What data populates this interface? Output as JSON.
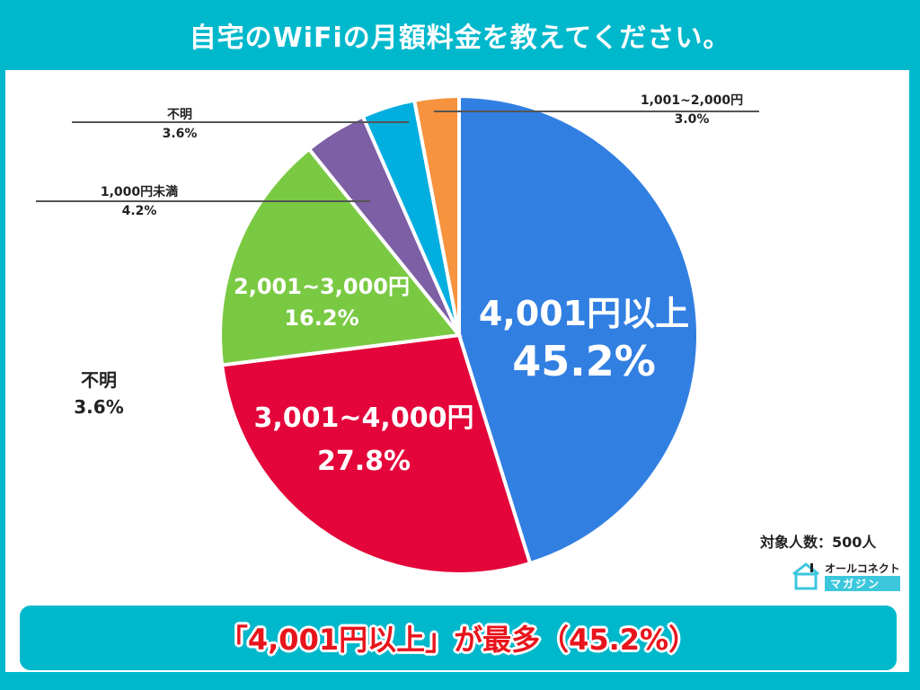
{
  "title": "自宅のWiFiの月額料金を教えてください。",
  "sample_size": "対象人数：500人",
  "logo": {
    "top": "オールコネクト",
    "bottom": "マガジン"
  },
  "footer": "「4,001円以上」が最多（45.2%）",
  "labels": {
    "s1": {
      "name": "4,001円以上",
      "pct": "45.2%"
    },
    "s2": {
      "name": "3,001~4,000円",
      "pct": "27.8%"
    },
    "s3": {
      "name": "2,001~3,000円",
      "pct": "16.2%"
    },
    "s4": {
      "name": "1,000円未満",
      "pct": "4.2%"
    },
    "s5": {
      "name": "不明",
      "pct": "3.6%"
    },
    "s6": {
      "name": "1,001~2,000円",
      "pct": "3.0%"
    },
    "extra": {
      "name": "不明",
      "pct": "3.6%"
    }
  },
  "chart_data": {
    "type": "pie",
    "title": "自宅のWiFiの月額料金を教えてください。",
    "categories": [
      "4,001円以上",
      "3,001~4,000円",
      "2,001~3,000円",
      "1,000円未満",
      "不明",
      "1,001~2,000円"
    ],
    "values": [
      45.2,
      27.8,
      16.2,
      4.2,
      3.6,
      3.0
    ],
    "colors": [
      "#327fe2",
      "#e4053a",
      "#7ac943",
      "#7d5fa6",
      "#00aedf",
      "#f7923e"
    ],
    "start_angle": "12 o'clock, clockwise",
    "annotation": "対象人数：500人"
  }
}
